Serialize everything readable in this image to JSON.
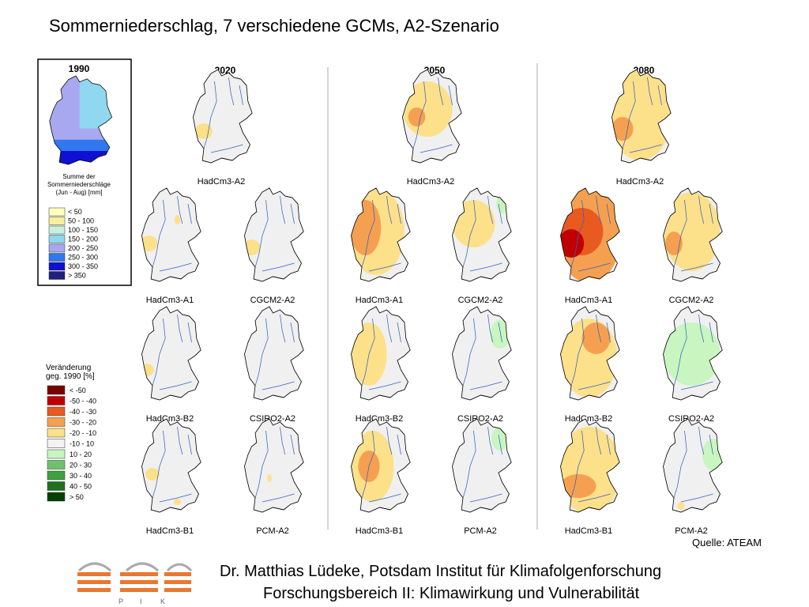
{
  "title": "Sommerniederschlag, 7 verschiedene GCMs, A2-Szenario",
  "baseline_map": {
    "title": "1990",
    "caption": [
      "Summe der",
      "Sommerniederschläge",
      "(Jun - Aug) [mm]"
    ],
    "legend": [
      {
        "label": "< 50",
        "color": "#ffffc0"
      },
      {
        "label": "50 - 100",
        "color": "#f5f0a0"
      },
      {
        "label": "100 - 150",
        "color": "#c8f0e0"
      },
      {
        "label": "150 - 200",
        "color": "#90d8f0"
      },
      {
        "label": "200 - 250",
        "color": "#a8a8f0"
      },
      {
        "label": "250 - 300",
        "color": "#3078f0"
      },
      {
        "label": "300 - 350",
        "color": "#1010d0"
      },
      {
        "label": "> 350",
        "color": "#202080"
      }
    ]
  },
  "change_legend": {
    "title": [
      "Veränderung",
      "geg. 1990 [%]"
    ],
    "items": [
      {
        "label": "< -50",
        "color": "#7a0000"
      },
      {
        "label": "-50 - -40",
        "color": "#c00000"
      },
      {
        "label": "-40 - -30",
        "color": "#e85a20"
      },
      {
        "label": "-30 - -20",
        "color": "#f5a050"
      },
      {
        "label": "-20 - -10",
        "color": "#fde08a"
      },
      {
        "label": "-10 - 10",
        "color": "#f2f2f2"
      },
      {
        "label": "10 - 20",
        "color": "#c8f5c0"
      },
      {
        "label": "20 - 30",
        "color": "#70c070"
      },
      {
        "label": "30 - 40",
        "color": "#40a040"
      },
      {
        "label": "40 - 50",
        "color": "#207020"
      },
      {
        "label": "> 50",
        "color": "#004000"
      }
    ]
  },
  "columns": [
    {
      "year": "2020",
      "maps": [
        "HadCm3-A2",
        "HadCm3-A1",
        "CGCM2-A2",
        "HadCm3-B2",
        "CSIRO2-A2",
        "HadCm3-B1",
        "PCM-A2"
      ]
    },
    {
      "year": "2050",
      "maps": [
        "HadCm3-A2",
        "HadCm3-A1",
        "CGCM2-A2",
        "HadCm3-B2",
        "CSIRO2-A2",
        "HadCm3-B1",
        "PCM-A2"
      ]
    },
    {
      "year": "2080",
      "maps": [
        "HadCm3-A2",
        "HadCm3-A1",
        "CGCM2-A2",
        "HadCm3-B2",
        "CSIRO2-A2",
        "HadCm3-B1",
        "PCM-A2"
      ]
    }
  ],
  "source": "Quelle: ATEAM",
  "footer": {
    "lines": [
      "Dr. Matthias Lüdeke, Potsdam Institut für Klimafolgenforschung",
      "Forschungsbereich II: Klimawirkung und Vulnerabilität"
    ],
    "logo_letters": [
      "P",
      "I",
      "K"
    ]
  }
}
